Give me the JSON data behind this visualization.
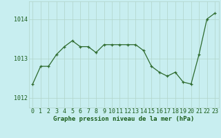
{
  "x": [
    0,
    1,
    2,
    3,
    4,
    5,
    6,
    7,
    8,
    9,
    10,
    11,
    12,
    13,
    14,
    15,
    16,
    17,
    18,
    19,
    20,
    21,
    22,
    23
  ],
  "y": [
    1012.35,
    1012.8,
    1012.8,
    1013.1,
    1013.3,
    1013.45,
    1013.3,
    1013.3,
    1013.15,
    1013.35,
    1013.35,
    1013.35,
    1013.35,
    1013.35,
    1013.2,
    1012.8,
    1012.65,
    1012.55,
    1012.65,
    1012.4,
    1012.35,
    1013.1,
    1014.0,
    1014.15
  ],
  "line_color": "#2d6a2d",
  "marker": "+",
  "background_color": "#c8eef0",
  "grid_color": "#b0d4c8",
  "ylabel_ticks": [
    1012,
    1013,
    1014
  ],
  "ylim": [
    1011.75,
    1014.45
  ],
  "xlim": [
    -0.5,
    23.5
  ],
  "xlabel": "Graphe pression niveau de la mer (hPa)",
  "xlabel_fontsize": 6.5,
  "tick_fontsize": 6.0,
  "label_color": "#1a5c1a"
}
